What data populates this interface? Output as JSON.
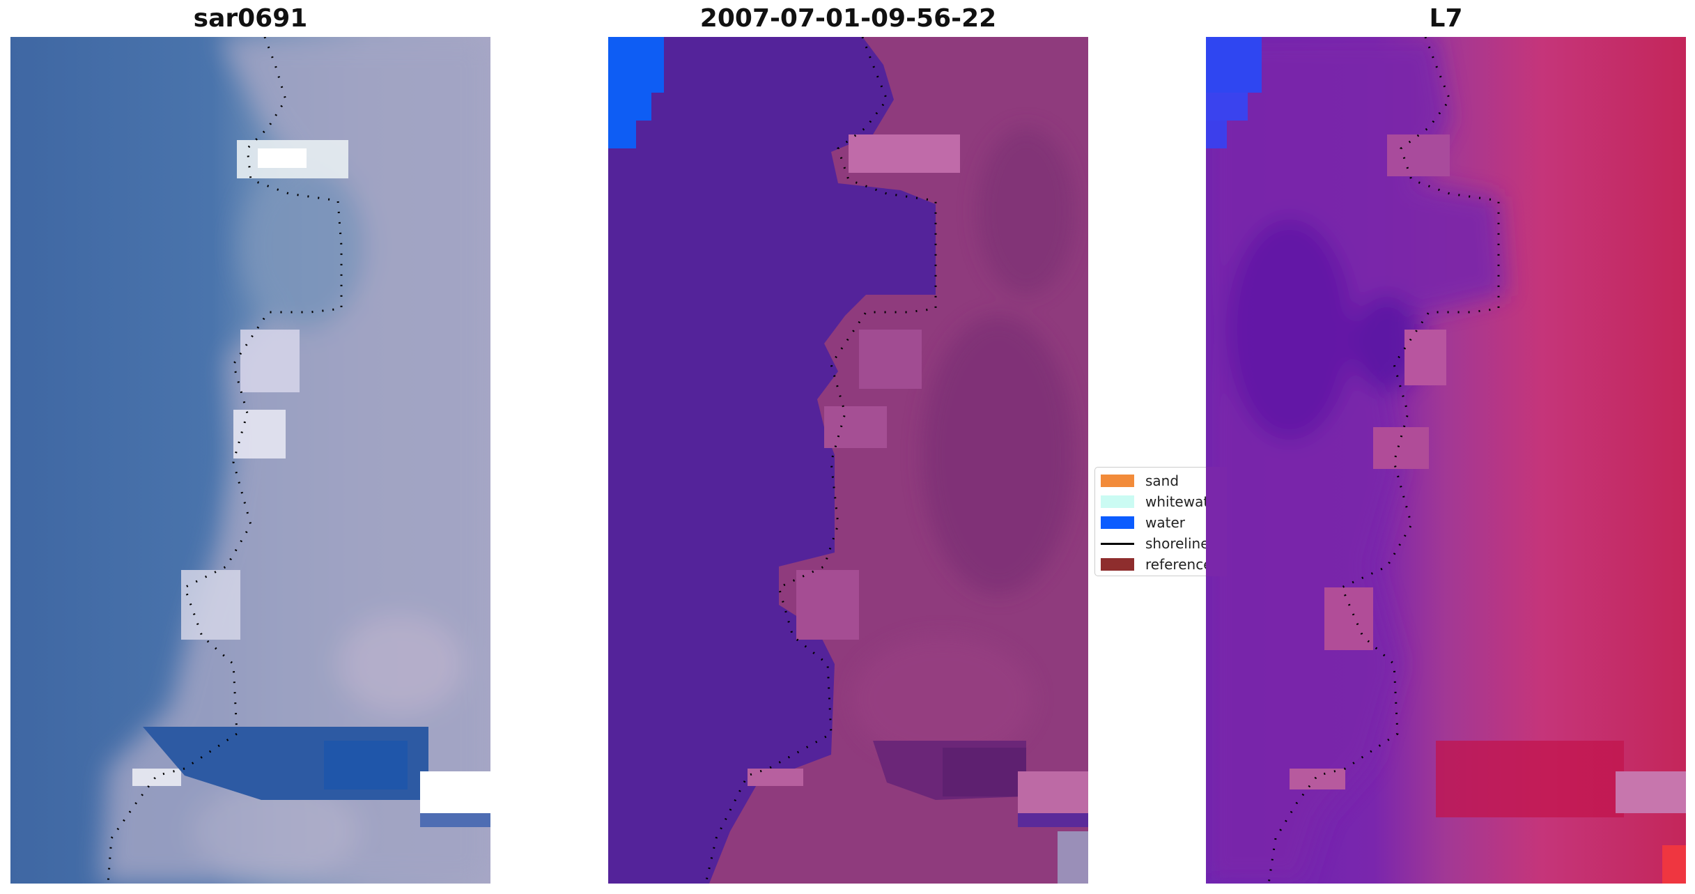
{
  "panels": [
    {
      "id": "rgb",
      "title": "sar0691"
    },
    {
      "id": "classified",
      "title": "2007-07-01-09-56-22"
    },
    {
      "id": "mndwi",
      "title": "L7"
    }
  ],
  "legend": {
    "items": [
      {
        "label": "sand",
        "color": "#f28b3a",
        "kind": "patch"
      },
      {
        "label": "whitewater",
        "color": "#cbfbf3",
        "kind": "patch"
      },
      {
        "label": "water",
        "color": "#0b5cff",
        "kind": "patch"
      },
      {
        "label": "shoreline",
        "color": "#000000",
        "kind": "line"
      },
      {
        "label": "reference",
        "color": "#8e2d2d",
        "kind": "patch"
      }
    ]
  }
}
